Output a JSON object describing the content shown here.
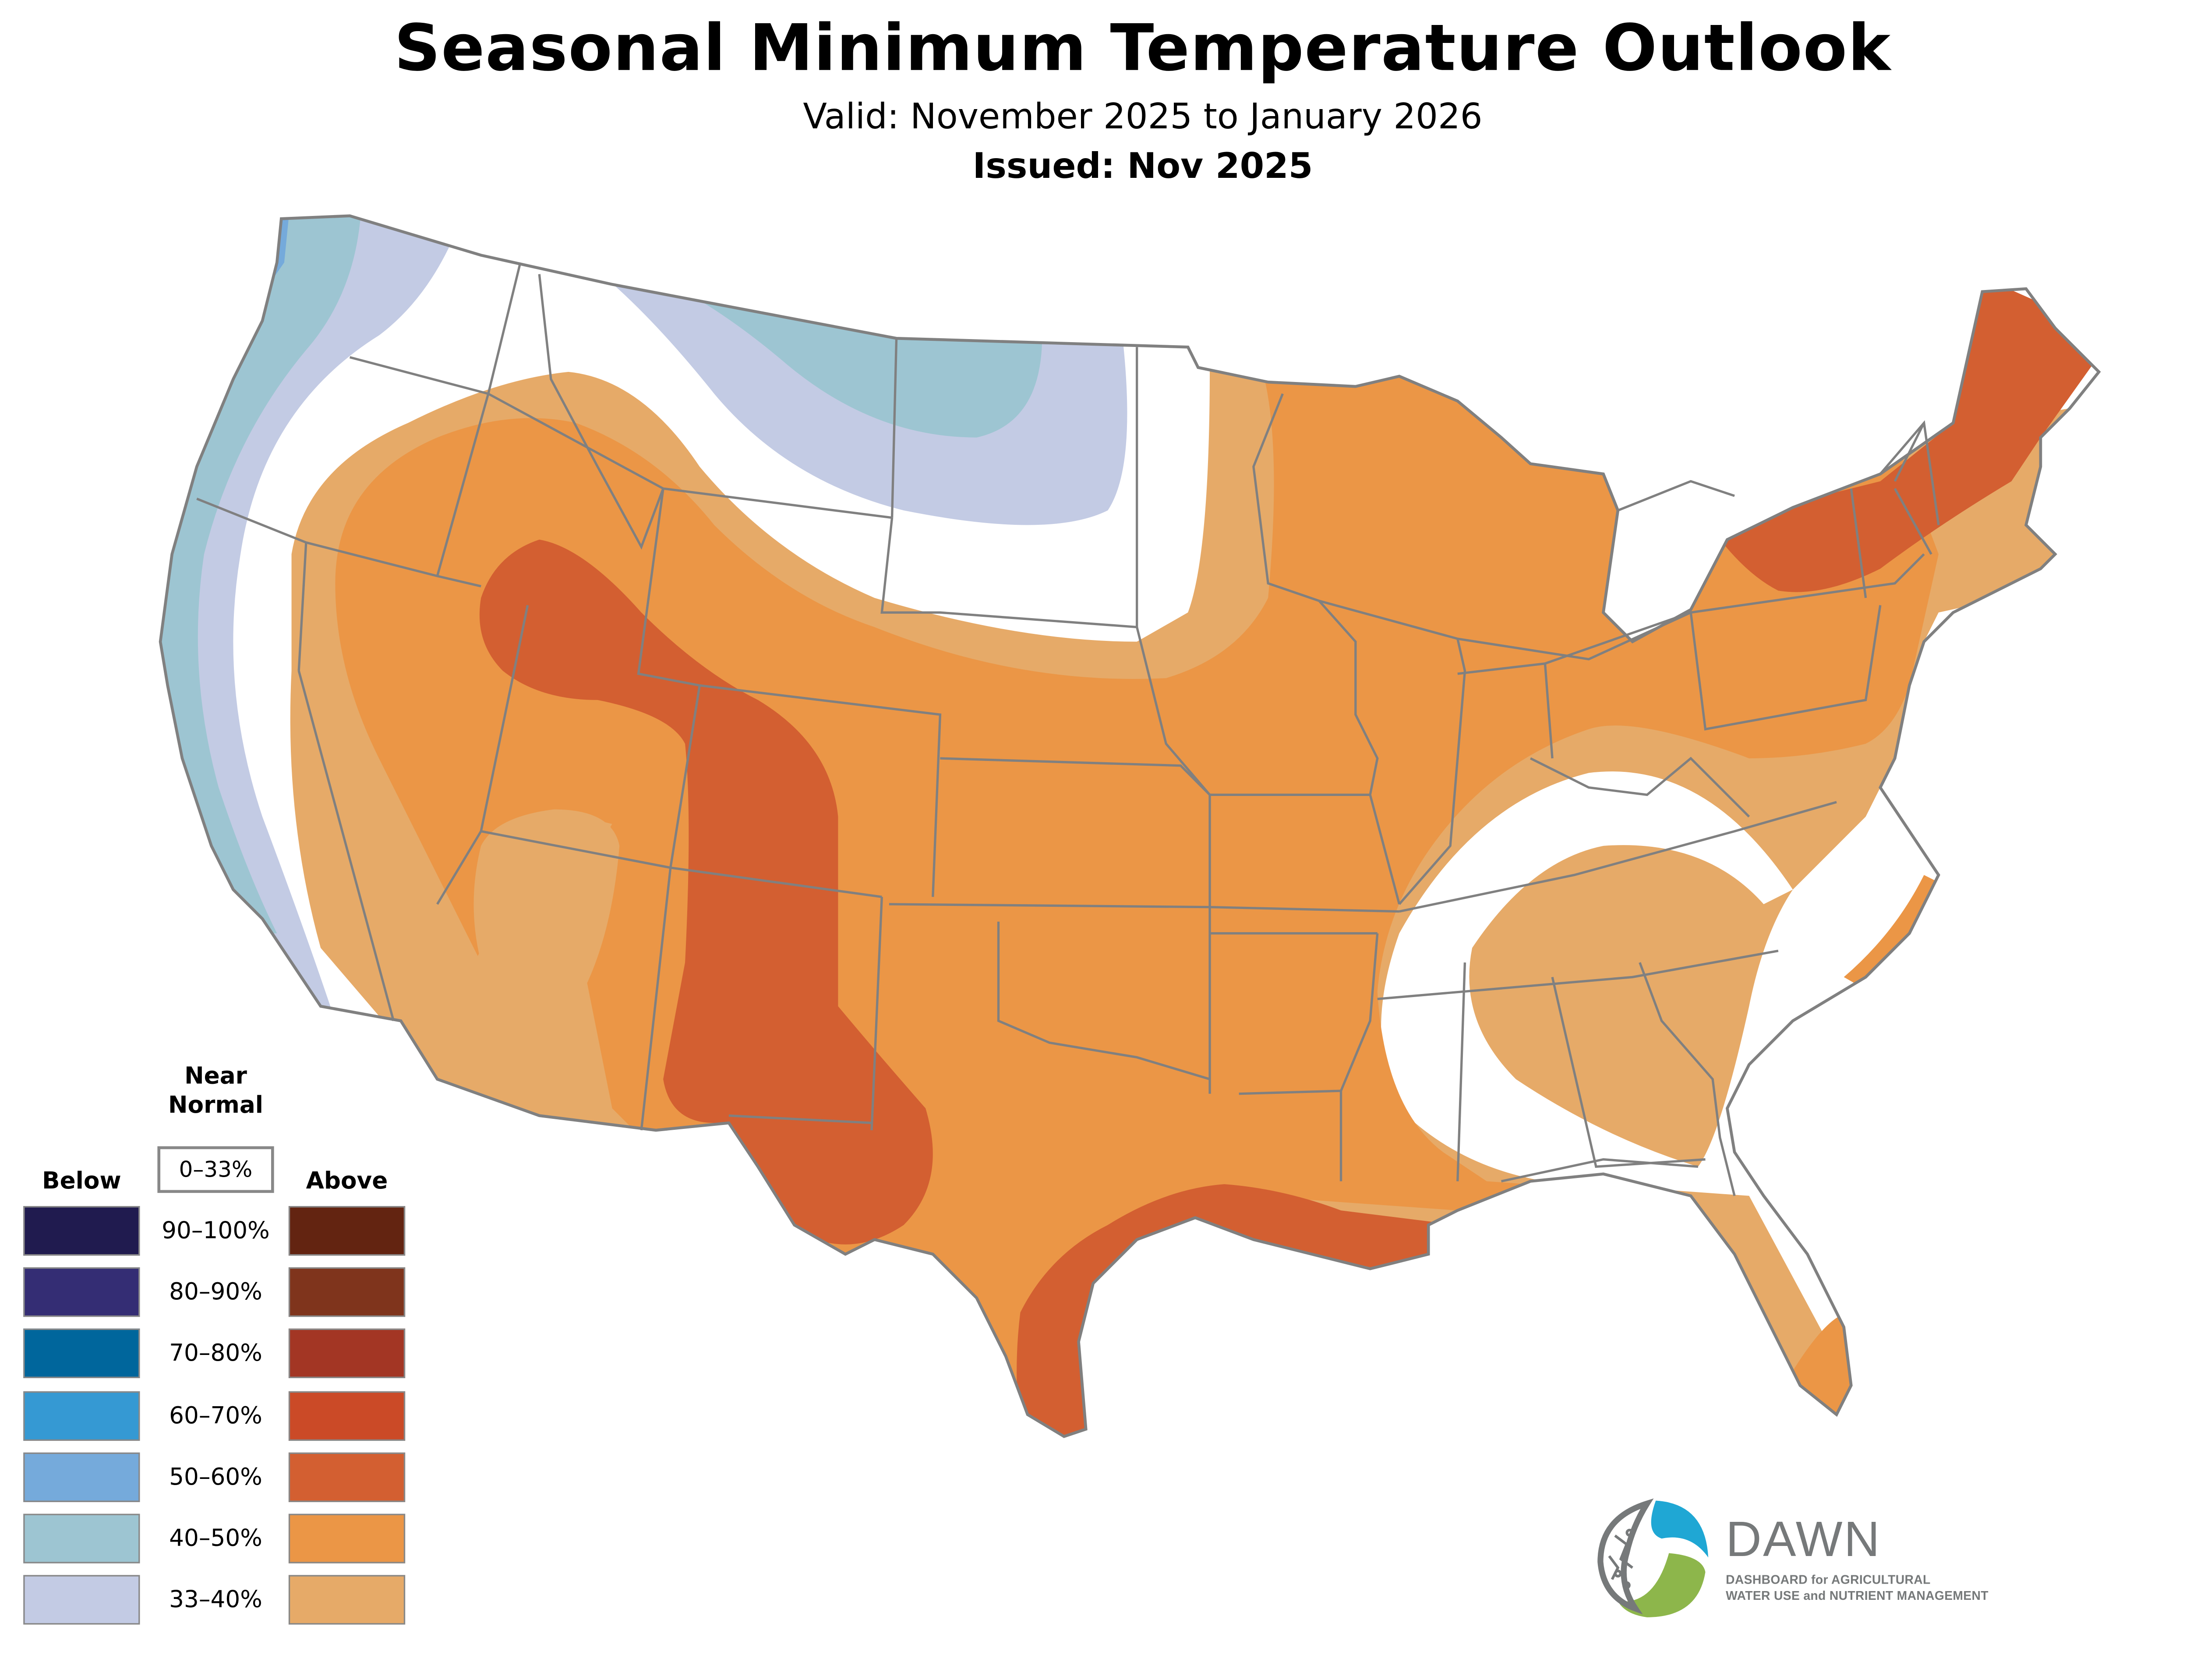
{
  "header": {
    "title": "Seasonal Minimum Temperature Outlook",
    "valid": "Valid: November 2025 to January 2026",
    "issued": "Issued: Nov 2025"
  },
  "legend": {
    "near_normal_title_line1": "Near",
    "near_normal_title_line2": "Normal",
    "near_normal_range": "0–33%",
    "below_label": "Below",
    "above_label": "Above",
    "rows": [
      {
        "range": "90–100%",
        "below_color": "#201b4f",
        "above_color": "#632411"
      },
      {
        "range": "80–90%",
        "below_color": "#342d74",
        "above_color": "#7f341c"
      },
      {
        "range": "70–80%",
        "below_color": "#00669c",
        "above_color": "#a33624"
      },
      {
        "range": "60–70%",
        "below_color": "#3599d3",
        "above_color": "#cb4a27"
      },
      {
        "range": "50–60%",
        "below_color": "#75aadb",
        "above_color": "#d35f31"
      },
      {
        "range": "40–50%",
        "below_color": "#9dc5d2",
        "above_color": "#eb9646"
      },
      {
        "range": "33–40%",
        "below_color": "#c3cbe4",
        "above_color": "#e6aa68"
      }
    ]
  },
  "map": {
    "region": "Contiguous United States",
    "state_border_color": "#808080",
    "categories": [
      {
        "name": "above-33-40",
        "color": "#e6aa68",
        "areas": [
          "Southwest desert",
          "Southeast arc",
          "Florida",
          "Upper Midwest strip"
        ]
      },
      {
        "name": "above-40-50",
        "color": "#eb9646",
        "areas": [
          "Great Basin",
          "Central Plains",
          "Midwest",
          "Great Lakes",
          "Mid-Atlantic"
        ]
      },
      {
        "name": "above-50-60",
        "color": "#d35f31",
        "areas": [
          "Central Rockies / New Mexico",
          "Gulf Coast",
          "Northern New England"
        ]
      },
      {
        "name": "below-33-40",
        "color": "#c3cbe4",
        "areas": [
          "Pacific Coast inland",
          "Northern Plains"
        ]
      },
      {
        "name": "below-40-50",
        "color": "#9dc5d2",
        "areas": [
          "Pacific Coast",
          "North Dakota / Montana border"
        ]
      },
      {
        "name": "below-50-60",
        "color": "#75aadb",
        "areas": [
          "Olympic Peninsula coast"
        ]
      },
      {
        "name": "near-normal",
        "color": "#ffffff",
        "areas": [
          "Northern Rockies",
          "Nevada/California interior",
          "Southern Appalachians"
        ]
      }
    ]
  },
  "logo": {
    "name": "DAWN",
    "subtitle_line1": "DASHBOARD for AGRICULTURAL",
    "subtitle_line2": "WATER USE and NUTRIENT MANAGEMENT",
    "colors": {
      "blue": "#1fa7d4",
      "green": "#8db64b",
      "gray": "#76797a"
    }
  }
}
